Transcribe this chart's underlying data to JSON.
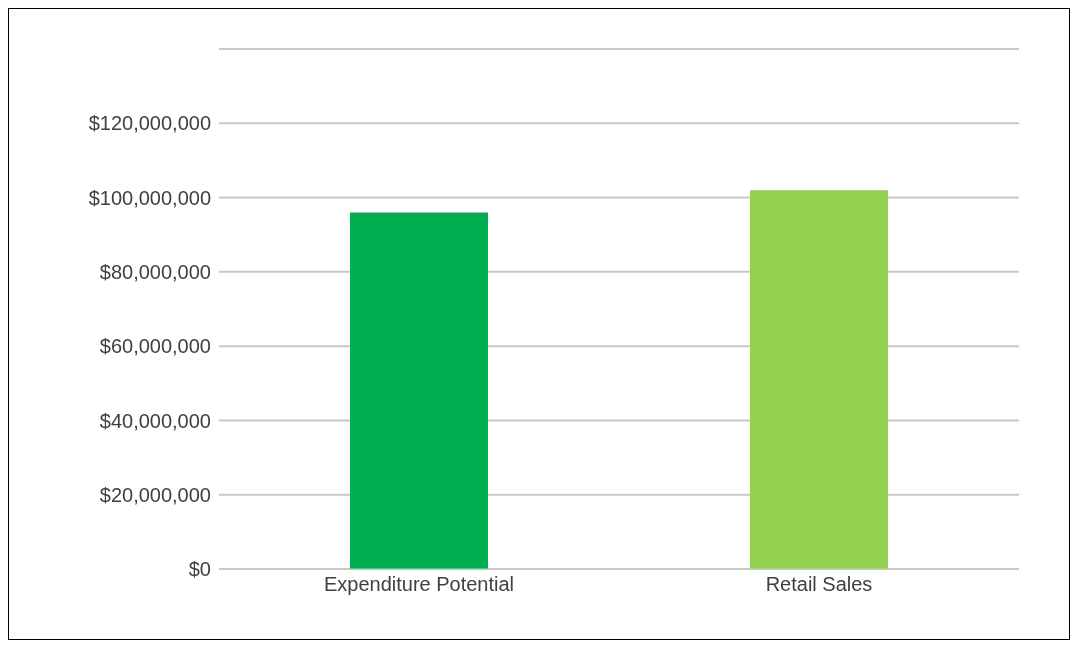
{
  "chart_data": {
    "type": "bar",
    "categories": [
      "Expenditure Potential",
      "Retail Sales"
    ],
    "values": [
      96000000,
      102000000
    ],
    "colors": [
      "#00b050",
      "#92d050"
    ],
    "ylim": [
      0,
      140000000
    ],
    "yticks": [
      {
        "value": 0,
        "label": "$0"
      },
      {
        "value": 20000000,
        "label": "$20,000,000"
      },
      {
        "value": 40000000,
        "label": "$40,000,000"
      },
      {
        "value": 60000000,
        "label": "$60,000,000"
      },
      {
        "value": 80000000,
        "label": "$80,000,000"
      },
      {
        "value": 100000000,
        "label": "$100,000,000"
      },
      {
        "value": 120000000,
        "label": "$120,000,000"
      },
      {
        "value": 140000000,
        "label": null
      }
    ],
    "grid": "y"
  }
}
